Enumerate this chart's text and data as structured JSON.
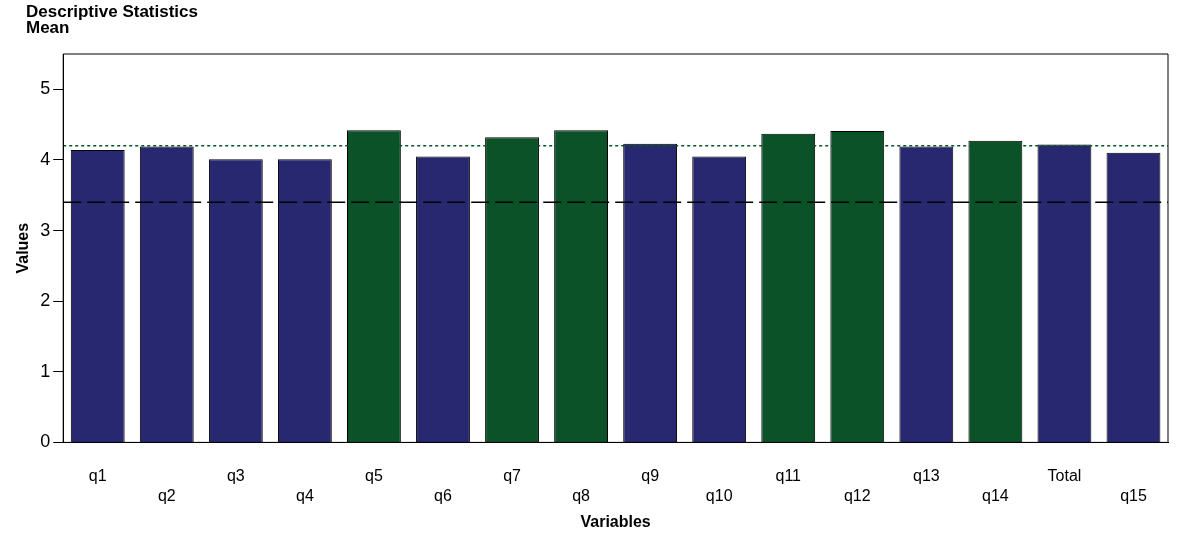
{
  "chart_data": {
    "type": "bar",
    "title": "Descriptive Statistics",
    "subtitle": "Mean",
    "xlabel": "Variables",
    "ylabel": "Values",
    "categories": [
      "q1",
      "q2",
      "q3",
      "q4",
      "q5",
      "q6",
      "q7",
      "q8",
      "q9",
      "q10",
      "q11",
      "q12",
      "q13",
      "q14",
      "Total",
      "q15"
    ],
    "values": [
      4.14,
      4.19,
      4.01,
      4.01,
      4.42,
      4.05,
      4.32,
      4.42,
      4.23,
      4.05,
      4.37,
      4.41,
      4.19,
      4.27,
      4.22,
      4.1
    ],
    "colors": [
      "#27286f",
      "#27286f",
      "#27286f",
      "#27286f",
      "#0b5229",
      "#27286f",
      "#0b5229",
      "#0b5229",
      "#27286f",
      "#27286f",
      "#0b5229",
      "#0b5229",
      "#27286f",
      "#0b5229",
      "#27286f",
      "#27286f"
    ],
    "ylim": [
      0,
      5.5
    ],
    "yticks": [
      0,
      1,
      2,
      3,
      4,
      5
    ],
    "grid": false,
    "legend": false,
    "ref_lines": [
      {
        "axis": "y",
        "value": 4.2,
        "color": "#0b5229",
        "line_style": "dotted"
      },
      {
        "axis": "y",
        "value": 3.4,
        "color": "#000000",
        "line_style": "dashed"
      }
    ]
  }
}
